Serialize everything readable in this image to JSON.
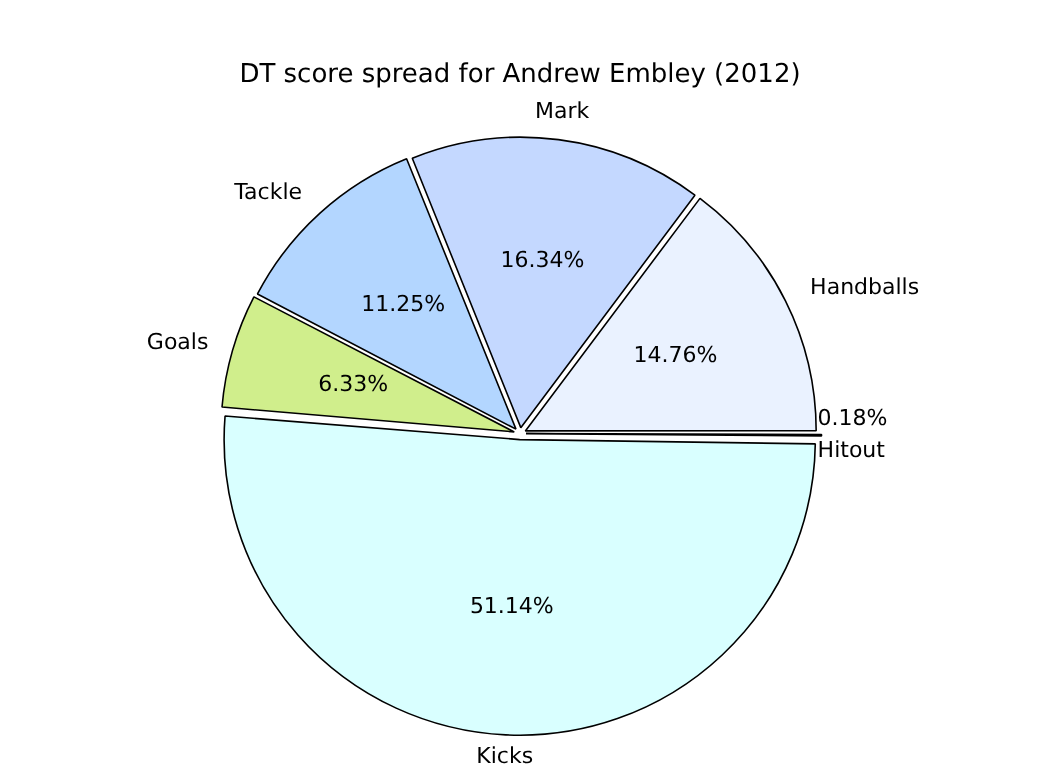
{
  "chart_data": {
    "type": "pie",
    "title": "DT score spread for Andrew Embley (2012)",
    "categories": [
      "Hitout",
      "Kicks",
      "Goals",
      "Tackle",
      "Mark",
      "Handballs"
    ],
    "values": [
      0.18,
      51.14,
      6.33,
      11.25,
      16.34,
      14.76
    ],
    "colors": [
      "#e6ecff",
      "#d9ffff",
      "#d0ee8c",
      "#b3d6ff",
      "#c4d8ff",
      "#eaf2ff"
    ],
    "value_labels": [
      "0.18%",
      "51.14%",
      "6.33%",
      "11.25%",
      "16.34%",
      "14.76%"
    ],
    "legend": false
  }
}
